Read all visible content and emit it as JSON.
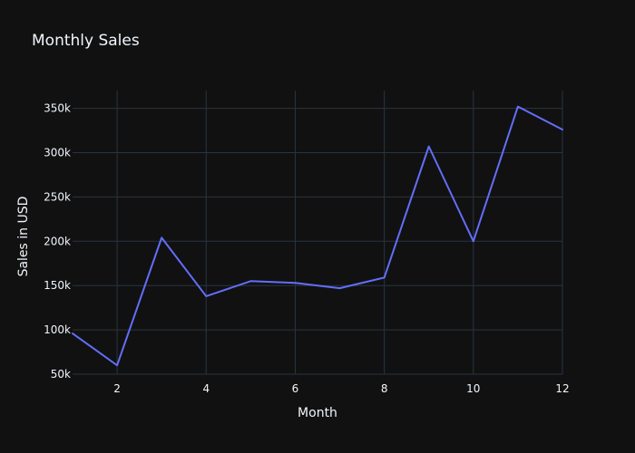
{
  "chart_data": {
    "type": "line",
    "title": "Monthly Sales",
    "xlabel": "Month",
    "ylabel": "Sales in USD",
    "x": [
      1,
      2,
      3,
      4,
      5,
      6,
      7,
      8,
      9,
      10,
      11,
      12
    ],
    "series": [
      {
        "values": [
          96000,
          60000,
          204000,
          138000,
          155000,
          153000,
          147000,
          159000,
          307000,
          200000,
          352000,
          326000
        ],
        "color": "#636efa"
      }
    ],
    "xlim": [
      1,
      12
    ],
    "ylim": [
      50000,
      370000
    ],
    "xticks": [
      2,
      4,
      6,
      8,
      10,
      12
    ],
    "xtick_labels": [
      "2",
      "4",
      "6",
      "8",
      "10",
      "12"
    ],
    "yticks": [
      50000,
      100000,
      150000,
      200000,
      250000,
      300000,
      350000
    ],
    "ytick_labels": [
      "50k",
      "100k",
      "150k",
      "200k",
      "250k",
      "300k",
      "350k"
    ],
    "grid": true,
    "background": "#111111",
    "grid_color": "#283442"
  }
}
